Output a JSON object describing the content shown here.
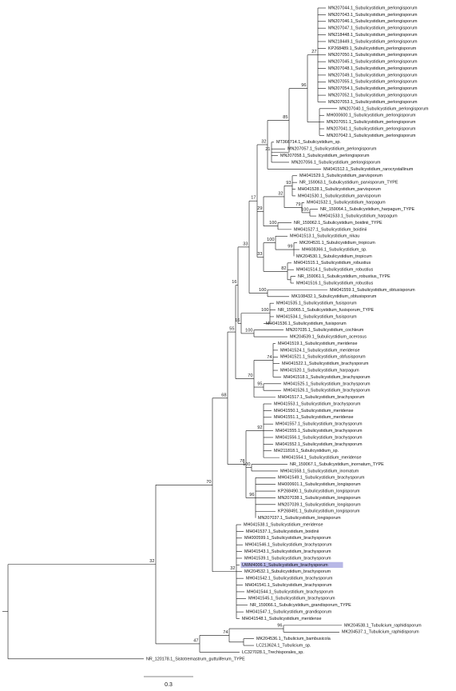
{
  "tips": [
    "MN207044.1_Subulicystidium_perlongisporum",
    "MN207043.1_Subulicystidium_perlongisporum",
    "MN207046.1_Subulicystidium_perlongisporum",
    "MN207047.1_Subulicystidium_perlongisporum",
    "MN218448.1_Subulicystidium_perlongisporum",
    "MN218449.1_Subulicystidium_perlongisporum",
    "KP268489.1_Subulicystidium_perlongisporum",
    "MN207050.1_Subulicystidium_perlongisporum",
    "MN207045.1_Subulicystidium_perlongisporum",
    "MN207048.1_Subulicystidium_perlongisporum",
    "MN207049.1_Subulicystidium_perlongisporum",
    "MN207055.1_Subulicystidium_perlongisporum",
    "MN207054.1_Subulicystidium_perlongisporum",
    "MN207052.1_Subulicystidium_perlongisporum",
    "MN207053.1_Subulicystidium_perlongisporum",
    "MN207040.1_Subulicystidium_perlongisporum",
    "MH000600.1_Subulicystidium_perlongisporum",
    "MN207051.1_Subulicystidium_perlongisporum",
    "MN207041.1_Subulicystidium_perlongisporum",
    "MN207042.1_Subulicystidium_perlongisporum",
    "MT366714.1_Subulicystidium_sp.",
    "MN207057.1_Subulicystidium_perlongisporum",
    "MN207058.1_Subulicystidium_perlongisporum",
    "MN207056.1_Subulicystidium_perlongisporum",
    "MH041512.1_Subulicystidium_rarocrystallinum",
    "MH041529.1_Subulicystidium_parvisporum",
    "NR_159063.1_Subulicystidium_parvisporum_TYPE",
    "MH041528.1_Subulicystidium_parvisporum",
    "MH041530.1_Subulicystidium_parvisporum",
    "MH041532.1_Subulicystidium_harpagum",
    "NR_159064.1_Subulicystidium_harpagum_TYPE",
    "MH041533.1_Subulicystidium_harpagum",
    "NR_159062.1_Subulicystidium_boidinii_TYPE",
    "MH041527.1_Subulicystidium_boidinii",
    "MH041513.1_Subulicystidium_nikau",
    "MK204531.1_Subulicystidium_tropicum",
    "MH608366.1_Subulicystidium_sp.",
    "MK204530.1_Subulicystidium_tropicum",
    "MH041515.1_Subulicystidium_robustius",
    "MH041514.1_Subulicystidium_robustius",
    "NR_159061.1_Subulicystidium_robustius_TYPE",
    "MH041516.1_Subulicystidium_robustius",
    "MH041559.1_Subulicystidium_obtusisporum",
    "MK108432.1_Subulicystidium_obtusisporum",
    "MH041535.1_Subulicystidium_fusisporum",
    "NR_159065.1_Subulicystidium_fusisporum_TYPE",
    "MH041534.1_Subulicystidium_fusisporum",
    "MH041536.1_Subulicystidium_fusisporum",
    "MN207035.1_Subulicystidium_cochleum",
    "MK204539.1_Subulicystidium_acerosus",
    "MH041519.1_Subulicystidium_meridense",
    "MH041524.1_Subulicystidium_meridense",
    "MH041521.1_Subulicystidium_obfusisporum",
    "MH041522.1_Subulicystidium_brachysporum",
    "MH041520.1_Subulicystidium_harpagum",
    "MH041518.1_Subulicystidium_brachysporum",
    "MH041525.1_Subulicystidium_brachysporum",
    "MH041526.1_Subulicystidium_brachysporum",
    "MH041517.1_Subulicystidium_brachysporum",
    "MH041553.1_Subulicystidium_brachysporum",
    "MH041550.1_Subulicystidium_meridense",
    "MH041551.1_Subulicystidium_meridense",
    "MH041557.1_Subulicystidium_brachysporum",
    "MH041555.1_Subulicystidium_brachysporum",
    "MH041556.1_Subulicystidium_brachysporum",
    "MH041552.1_Subulicystidium_brachysporum",
    "MH211818.1_Subulicystidium_sp.",
    "MH041554.1_Subulicystidium_meridense",
    "NR_159067.1_Subulicystidium_inornatum_TYPE",
    "MH041558.1_Subulicystidium_inornatum",
    "MH041549.1_Subulicystidium_brachysporum",
    "MH000601.1_Subulicystidium_longisporum",
    "KP268490.1_Subulicystidium_longisporum",
    "MN207038.1_Subulicystidium_longisporum",
    "MN207039.1_Subulicystidium_longisporum",
    "KP268491.1_Subulicystidium_longisporum",
    "MN207037.1_Subulicystidium_longisporum",
    "MH041538.1_Subulicystidium_meridense",
    "MH041537.1_Subulicystidium_boidinii",
    "MH000599.1_Subulicystidium_brachysporum",
    "MH041546.1_Subulicystidium_brachysporum",
    "MH041543.1_Subulicystidium_brachysporum",
    "MH041539.1_Subulicystidium_brachysporum",
    "UWM4006.1_Subulicystidium_brachysporum",
    "MK204532.1_Subulicystidium_brachysporum",
    "MH041542.1_Subulicystidium_brachysporum",
    "MH041541.1_Subulicystidium_brachysporum",
    "MH041544.1_Subulicystidium_brachysporum",
    "MH041545.1_Subulicystidium_brachysporum",
    "NR_159066.1_Subulicystidium_grandisporum_TYPE",
    "MH041547.1_Subulicystidium_grandisporum",
    "MH041548.1_Subulicystidium_meridense",
    "MK204538.1_Tubulicium_raphidisporum",
    "MK204537.1_Tubulicium_raphidisporum",
    "MK204536.1_Tubulicium_bambusicola",
    "LC213624.1_Tubulicium_sp.",
    "LC327028.1_Trechisporales_sp.",
    "NR_120178.1_Sistotremastrum_guttuliferum_TYPE"
  ],
  "bootstrap": [
    27,
    96,
    85,
    21,
    32,
    93,
    79,
    100,
    32,
    100,
    29,
    99,
    100,
    82,
    33,
    17,
    100,
    33,
    100,
    100,
    16,
    16,
    74,
    95,
    70,
    55,
    92,
    100,
    96,
    78,
    68,
    32,
    70,
    96,
    74,
    47,
    32
  ],
  "scale_bar": "0.3"
}
